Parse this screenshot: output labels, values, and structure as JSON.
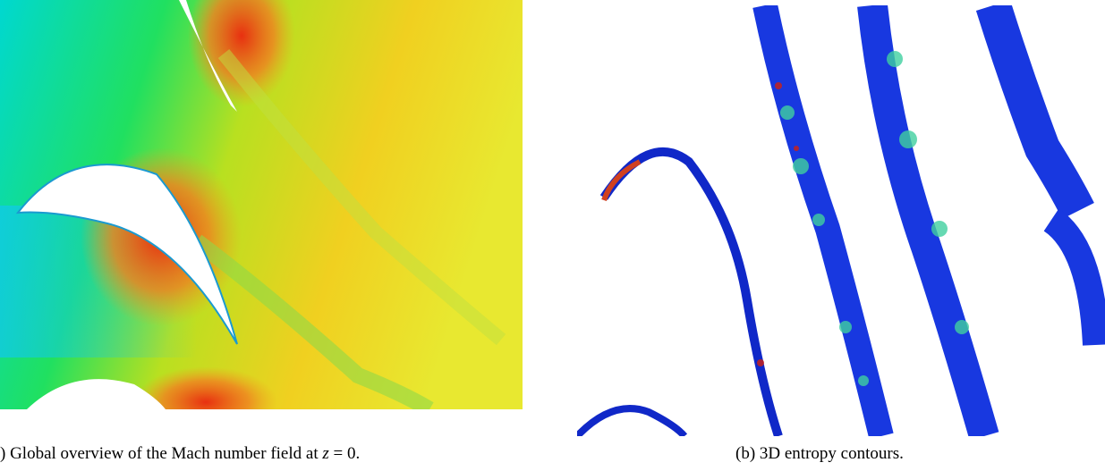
{
  "figures": [
    {
      "caption": {
        "prefix": ") Global overview of the Mach number field at ",
        "variable": "z",
        "suffix": " = 0."
      }
    },
    {
      "caption": {
        "text": "(b) 3D entropy contours."
      }
    }
  ]
}
